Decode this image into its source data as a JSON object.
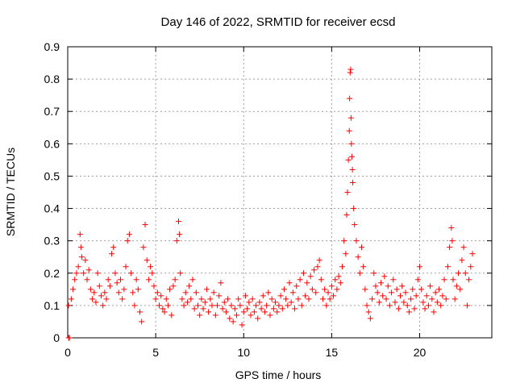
{
  "chart_data": {
    "type": "scatter",
    "title": "Day 146 of 2022, SRMTID for receiver ecsd",
    "xlabel": "GPS time / hours",
    "ylabel": "SRMTID / TECUs",
    "xlim": [
      0,
      24.1
    ],
    "ylim": [
      0,
      0.9
    ],
    "xticks": [
      0,
      5,
      10,
      15,
      20
    ],
    "xtick_labels": [
      "0",
      "5",
      "10",
      "15",
      "20"
    ],
    "yticks": [
      0,
      0.1,
      0.2,
      0.3,
      0.4,
      0.5,
      0.6,
      0.7,
      0.8,
      0.9
    ],
    "ytick_labels": [
      "0",
      "0.1",
      "0.2",
      "0.3",
      "0.4",
      "0.5",
      "0.6",
      "0.7",
      "0.8",
      "0.9"
    ],
    "grid": true,
    "marker": "+",
    "color": "#ff0000",
    "series": [
      {
        "name": "SRMTID",
        "points": [
          [
            0.05,
            0.0
          ],
          [
            0.1,
            0.0
          ],
          [
            0.05,
            0.1
          ],
          [
            0.2,
            0.12
          ],
          [
            0.3,
            0.15
          ],
          [
            0.4,
            0.18
          ],
          [
            0.5,
            0.2
          ],
          [
            0.6,
            0.22
          ],
          [
            0.7,
            0.32
          ],
          [
            0.75,
            0.28
          ],
          [
            0.8,
            0.25
          ],
          [
            0.9,
            0.2
          ],
          [
            1.0,
            0.24
          ],
          [
            1.1,
            0.18
          ],
          [
            1.2,
            0.21
          ],
          [
            1.3,
            0.15
          ],
          [
            1.4,
            0.12
          ],
          [
            1.5,
            0.14
          ],
          [
            1.6,
            0.11
          ],
          [
            1.7,
            0.2
          ],
          [
            1.8,
            0.16
          ],
          [
            1.9,
            0.13
          ],
          [
            2.0,
            0.1
          ],
          [
            2.1,
            0.14
          ],
          [
            2.2,
            0.12
          ],
          [
            2.3,
            0.18
          ],
          [
            2.4,
            0.16
          ],
          [
            2.5,
            0.26
          ],
          [
            2.6,
            0.28
          ],
          [
            2.7,
            0.2
          ],
          [
            2.8,
            0.17
          ],
          [
            2.9,
            0.14
          ],
          [
            3.0,
            0.18
          ],
          [
            3.1,
            0.12
          ],
          [
            3.2,
            0.15
          ],
          [
            3.3,
            0.22
          ],
          [
            3.4,
            0.3
          ],
          [
            3.5,
            0.32
          ],
          [
            3.6,
            0.2
          ],
          [
            3.7,
            0.14
          ],
          [
            3.8,
            0.1
          ],
          [
            3.9,
            0.18
          ],
          [
            4.0,
            0.15
          ],
          [
            4.1,
            0.08
          ],
          [
            4.2,
            0.05
          ],
          [
            4.3,
            0.28
          ],
          [
            4.4,
            0.35
          ],
          [
            4.5,
            0.24
          ],
          [
            4.6,
            0.18
          ],
          [
            4.7,
            0.22
          ],
          [
            4.8,
            0.2
          ],
          [
            4.9,
            0.16
          ],
          [
            5.0,
            0.12
          ],
          [
            5.1,
            0.14
          ],
          [
            5.2,
            0.1
          ],
          [
            5.3,
            0.13
          ],
          [
            5.4,
            0.09
          ],
          [
            5.5,
            0.08
          ],
          [
            5.6,
            0.12
          ],
          [
            5.7,
            0.1
          ],
          [
            5.8,
            0.15
          ],
          [
            5.9,
            0.07
          ],
          [
            6.0,
            0.16
          ],
          [
            6.1,
            0.18
          ],
          [
            6.2,
            0.3
          ],
          [
            6.3,
            0.36
          ],
          [
            6.35,
            0.32
          ],
          [
            6.4,
            0.2
          ],
          [
            6.5,
            0.12
          ],
          [
            6.6,
            0.1
          ],
          [
            6.7,
            0.14
          ],
          [
            6.8,
            0.11
          ],
          [
            6.9,
            0.16
          ],
          [
            7.0,
            0.12
          ],
          [
            7.1,
            0.18
          ],
          [
            7.2,
            0.09
          ],
          [
            7.3,
            0.14
          ],
          [
            7.4,
            0.1
          ],
          [
            7.5,
            0.07
          ],
          [
            7.6,
            0.12
          ],
          [
            7.7,
            0.09
          ],
          [
            7.8,
            0.11
          ],
          [
            7.9,
            0.15
          ],
          [
            8.0,
            0.08
          ],
          [
            8.1,
            0.12
          ],
          [
            8.2,
            0.1
          ],
          [
            8.3,
            0.14
          ],
          [
            8.4,
            0.07
          ],
          [
            8.5,
            0.1
          ],
          [
            8.6,
            0.13
          ],
          [
            8.7,
            0.17
          ],
          [
            8.8,
            0.09
          ],
          [
            8.9,
            0.11
          ],
          [
            9.0,
            0.08
          ],
          [
            9.1,
            0.12
          ],
          [
            9.2,
            0.06
          ],
          [
            9.3,
            0.1
          ],
          [
            9.4,
            0.05
          ],
          [
            9.5,
            0.09
          ],
          [
            9.6,
            0.07
          ],
          [
            9.7,
            0.12
          ],
          [
            9.8,
            0.1
          ],
          [
            9.9,
            0.04
          ],
          [
            10.0,
            0.08
          ],
          [
            10.1,
            0.13
          ],
          [
            10.2,
            0.09
          ],
          [
            10.3,
            0.11
          ],
          [
            10.4,
            0.07
          ],
          [
            10.5,
            0.12
          ],
          [
            10.6,
            0.08
          ],
          [
            10.7,
            0.1
          ],
          [
            10.8,
            0.06
          ],
          [
            10.9,
            0.11
          ],
          [
            11.0,
            0.09
          ],
          [
            11.1,
            0.13
          ],
          [
            11.2,
            0.08
          ],
          [
            11.3,
            0.1
          ],
          [
            11.4,
            0.14
          ],
          [
            11.5,
            0.07
          ],
          [
            11.6,
            0.12
          ],
          [
            11.7,
            0.09
          ],
          [
            11.8,
            0.11
          ],
          [
            11.9,
            0.08
          ],
          [
            12.0,
            0.1
          ],
          [
            12.1,
            0.13
          ],
          [
            12.2,
            0.09
          ],
          [
            12.3,
            0.15
          ],
          [
            12.4,
            0.12
          ],
          [
            12.5,
            0.1
          ],
          [
            12.6,
            0.17
          ],
          [
            12.7,
            0.11
          ],
          [
            12.8,
            0.14
          ],
          [
            12.9,
            0.09
          ],
          [
            13.0,
            0.16
          ],
          [
            13.1,
            0.12
          ],
          [
            13.2,
            0.18
          ],
          [
            13.3,
            0.1
          ],
          [
            13.4,
            0.2
          ],
          [
            13.5,
            0.13
          ],
          [
            13.6,
            0.17
          ],
          [
            13.7,
            0.12
          ],
          [
            13.8,
            0.19
          ],
          [
            13.9,
            0.15
          ],
          [
            14.0,
            0.21
          ],
          [
            14.1,
            0.14
          ],
          [
            14.2,
            0.22
          ],
          [
            14.3,
            0.24
          ],
          [
            14.4,
            0.18
          ],
          [
            14.5,
            0.12
          ],
          [
            14.6,
            0.15
          ],
          [
            14.7,
            0.1
          ],
          [
            14.8,
            0.14
          ],
          [
            14.9,
            0.12
          ],
          [
            15.0,
            0.16
          ],
          [
            15.1,
            0.13
          ],
          [
            15.2,
            0.18
          ],
          [
            15.3,
            0.15
          ],
          [
            15.4,
            0.19
          ],
          [
            15.5,
            0.17
          ],
          [
            15.6,
            0.22
          ],
          [
            15.7,
            0.3
          ],
          [
            15.8,
            0.26
          ],
          [
            15.85,
            0.38
          ],
          [
            15.9,
            0.45
          ],
          [
            15.95,
            0.55
          ],
          [
            16.0,
            0.64
          ],
          [
            16.02,
            0.74
          ],
          [
            16.05,
            0.82
          ],
          [
            16.08,
            0.83
          ],
          [
            16.1,
            0.68
          ],
          [
            16.12,
            0.6
          ],
          [
            16.15,
            0.56
          ],
          [
            16.18,
            0.52
          ],
          [
            16.2,
            0.48
          ],
          [
            16.25,
            0.4
          ],
          [
            16.3,
            0.35
          ],
          [
            16.4,
            0.3
          ],
          [
            16.5,
            0.25
          ],
          [
            16.6,
            0.2
          ],
          [
            16.7,
            0.28
          ],
          [
            16.8,
            0.22
          ],
          [
            16.9,
            0.15
          ],
          [
            17.0,
            0.1
          ],
          [
            17.1,
            0.08
          ],
          [
            17.2,
            0.06
          ],
          [
            17.3,
            0.12
          ],
          [
            17.4,
            0.2
          ],
          [
            17.5,
            0.16
          ],
          [
            17.6,
            0.14
          ],
          [
            17.7,
            0.11
          ],
          [
            17.8,
            0.17
          ],
          [
            17.9,
            0.13
          ],
          [
            18.0,
            0.19
          ],
          [
            18.1,
            0.12
          ],
          [
            18.2,
            0.16
          ],
          [
            18.3,
            0.1
          ],
          [
            18.4,
            0.14
          ],
          [
            18.5,
            0.18
          ],
          [
            18.6,
            0.11
          ],
          [
            18.7,
            0.15
          ],
          [
            18.8,
            0.09
          ],
          [
            18.9,
            0.13
          ],
          [
            19.0,
            0.16
          ],
          [
            19.1,
            0.11
          ],
          [
            19.2,
            0.14
          ],
          [
            19.3,
            0.1
          ],
          [
            19.4,
            0.08
          ],
          [
            19.5,
            0.12
          ],
          [
            19.6,
            0.15
          ],
          [
            19.7,
            0.09
          ],
          [
            19.8,
            0.13
          ],
          [
            19.9,
            0.18
          ],
          [
            20.0,
            0.22
          ],
          [
            20.1,
            0.15
          ],
          [
            20.2,
            0.11
          ],
          [
            20.3,
            0.09
          ],
          [
            20.4,
            0.13
          ],
          [
            20.5,
            0.1
          ],
          [
            20.6,
            0.16
          ],
          [
            20.7,
            0.12
          ],
          [
            20.8,
            0.08
          ],
          [
            20.9,
            0.14
          ],
          [
            21.0,
            0.11
          ],
          [
            21.1,
            0.15
          ],
          [
            21.2,
            0.1
          ],
          [
            21.3,
            0.13
          ],
          [
            21.4,
            0.18
          ],
          [
            21.5,
            0.12
          ],
          [
            21.6,
            0.22
          ],
          [
            21.7,
            0.28
          ],
          [
            21.8,
            0.34
          ],
          [
            21.85,
            0.3
          ],
          [
            21.9,
            0.18
          ],
          [
            22.0,
            0.12
          ],
          [
            22.1,
            0.16
          ],
          [
            22.2,
            0.2
          ],
          [
            22.3,
            0.15
          ],
          [
            22.4,
            0.24
          ],
          [
            22.5,
            0.28
          ],
          [
            22.6,
            0.2
          ],
          [
            22.7,
            0.1
          ],
          [
            22.8,
            0.18
          ],
          [
            22.9,
            0.22
          ],
          [
            23.0,
            0.26
          ]
        ]
      }
    ]
  }
}
